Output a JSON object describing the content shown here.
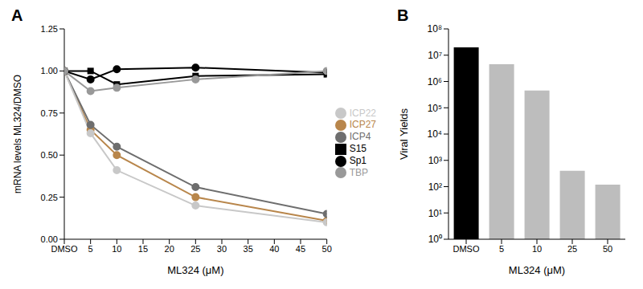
{
  "chart_data": [
    {
      "type": "line",
      "title": "A",
      "xlabel": "ML324 (μM)",
      "ylabel": "mRNA levels ML324/DMSO",
      "x": [
        0,
        5,
        10,
        25,
        50
      ],
      "xlim": [
        0,
        50
      ],
      "xticks": [
        {
          "value": 0,
          "label": "DMSO"
        },
        5,
        10,
        15,
        20,
        25,
        30,
        35,
        40,
        45,
        50
      ],
      "ylim": [
        0,
        1.25
      ],
      "yticks": [
        {
          "value": 0,
          "label": "0.00"
        },
        {
          "value": 0.25,
          "label": "0.25"
        },
        {
          "value": 0.5,
          "label": "0.50"
        },
        {
          "value": 0.75,
          "label": "0.75"
        },
        {
          "value": 1,
          "label": "1.00"
        },
        {
          "value": 1.25,
          "label": "1.25"
        }
      ],
      "grid": false,
      "legend": "right",
      "series": [
        {
          "name": "ICP27",
          "color": "#b8864b",
          "marker": "circle",
          "values": [
            1.0,
            0.65,
            0.5,
            0.25,
            0.11
          ]
        },
        {
          "name": "ICP4",
          "color": "#6e6e6e",
          "marker": "circle",
          "values": [
            1.0,
            0.68,
            0.55,
            0.31,
            0.15
          ]
        },
        {
          "name": "ICP22",
          "color": "#c8c8c8",
          "marker": "circle",
          "values": [
            1.0,
            0.63,
            0.41,
            0.2,
            0.1
          ]
        },
        {
          "name": "S15",
          "color": "#000000",
          "marker": "square",
          "values": [
            1.0,
            1.0,
            0.92,
            0.97,
            0.98
          ]
        },
        {
          "name": "Sp1",
          "color": "#000000",
          "marker": "circle",
          "values": [
            1.0,
            0.95,
            1.01,
            1.02,
            0.99
          ]
        },
        {
          "name": "TBP",
          "color": "#999999",
          "marker": "circle",
          "values": [
            1.0,
            0.88,
            0.9,
            0.95,
            1.0
          ]
        }
      ]
    },
    {
      "type": "bar",
      "title": "B",
      "xlabel": "ML324 (μM)",
      "ylabel": "Viral Yields",
      "categories": [
        "DMSO",
        "5",
        "10",
        "25",
        "50"
      ],
      "values": [
        20000000,
        4500000,
        450000,
        400,
        120
      ],
      "colors": [
        "#000000",
        "#bdbdbd",
        "#bdbdbd",
        "#bdbdbd",
        "#bdbdbd"
      ],
      "log": "y",
      "grid": false,
      "ylim": [
        1,
        100000000
      ],
      "yticks": [
        {
          "value": 1,
          "label": "10⁰"
        },
        {
          "value": 10,
          "label": "10¹"
        },
        {
          "value": 100,
          "label": "10²"
        },
        {
          "value": 1000,
          "label": "10³"
        },
        {
          "value": 10000,
          "label": "10⁴"
        },
        {
          "value": 100000,
          "label": "10⁵"
        },
        {
          "value": 1000000,
          "label": "10⁶"
        },
        {
          "value": 10000000,
          "label": "10⁷"
        },
        {
          "value": 100000000,
          "label": "10⁸"
        }
      ]
    }
  ]
}
